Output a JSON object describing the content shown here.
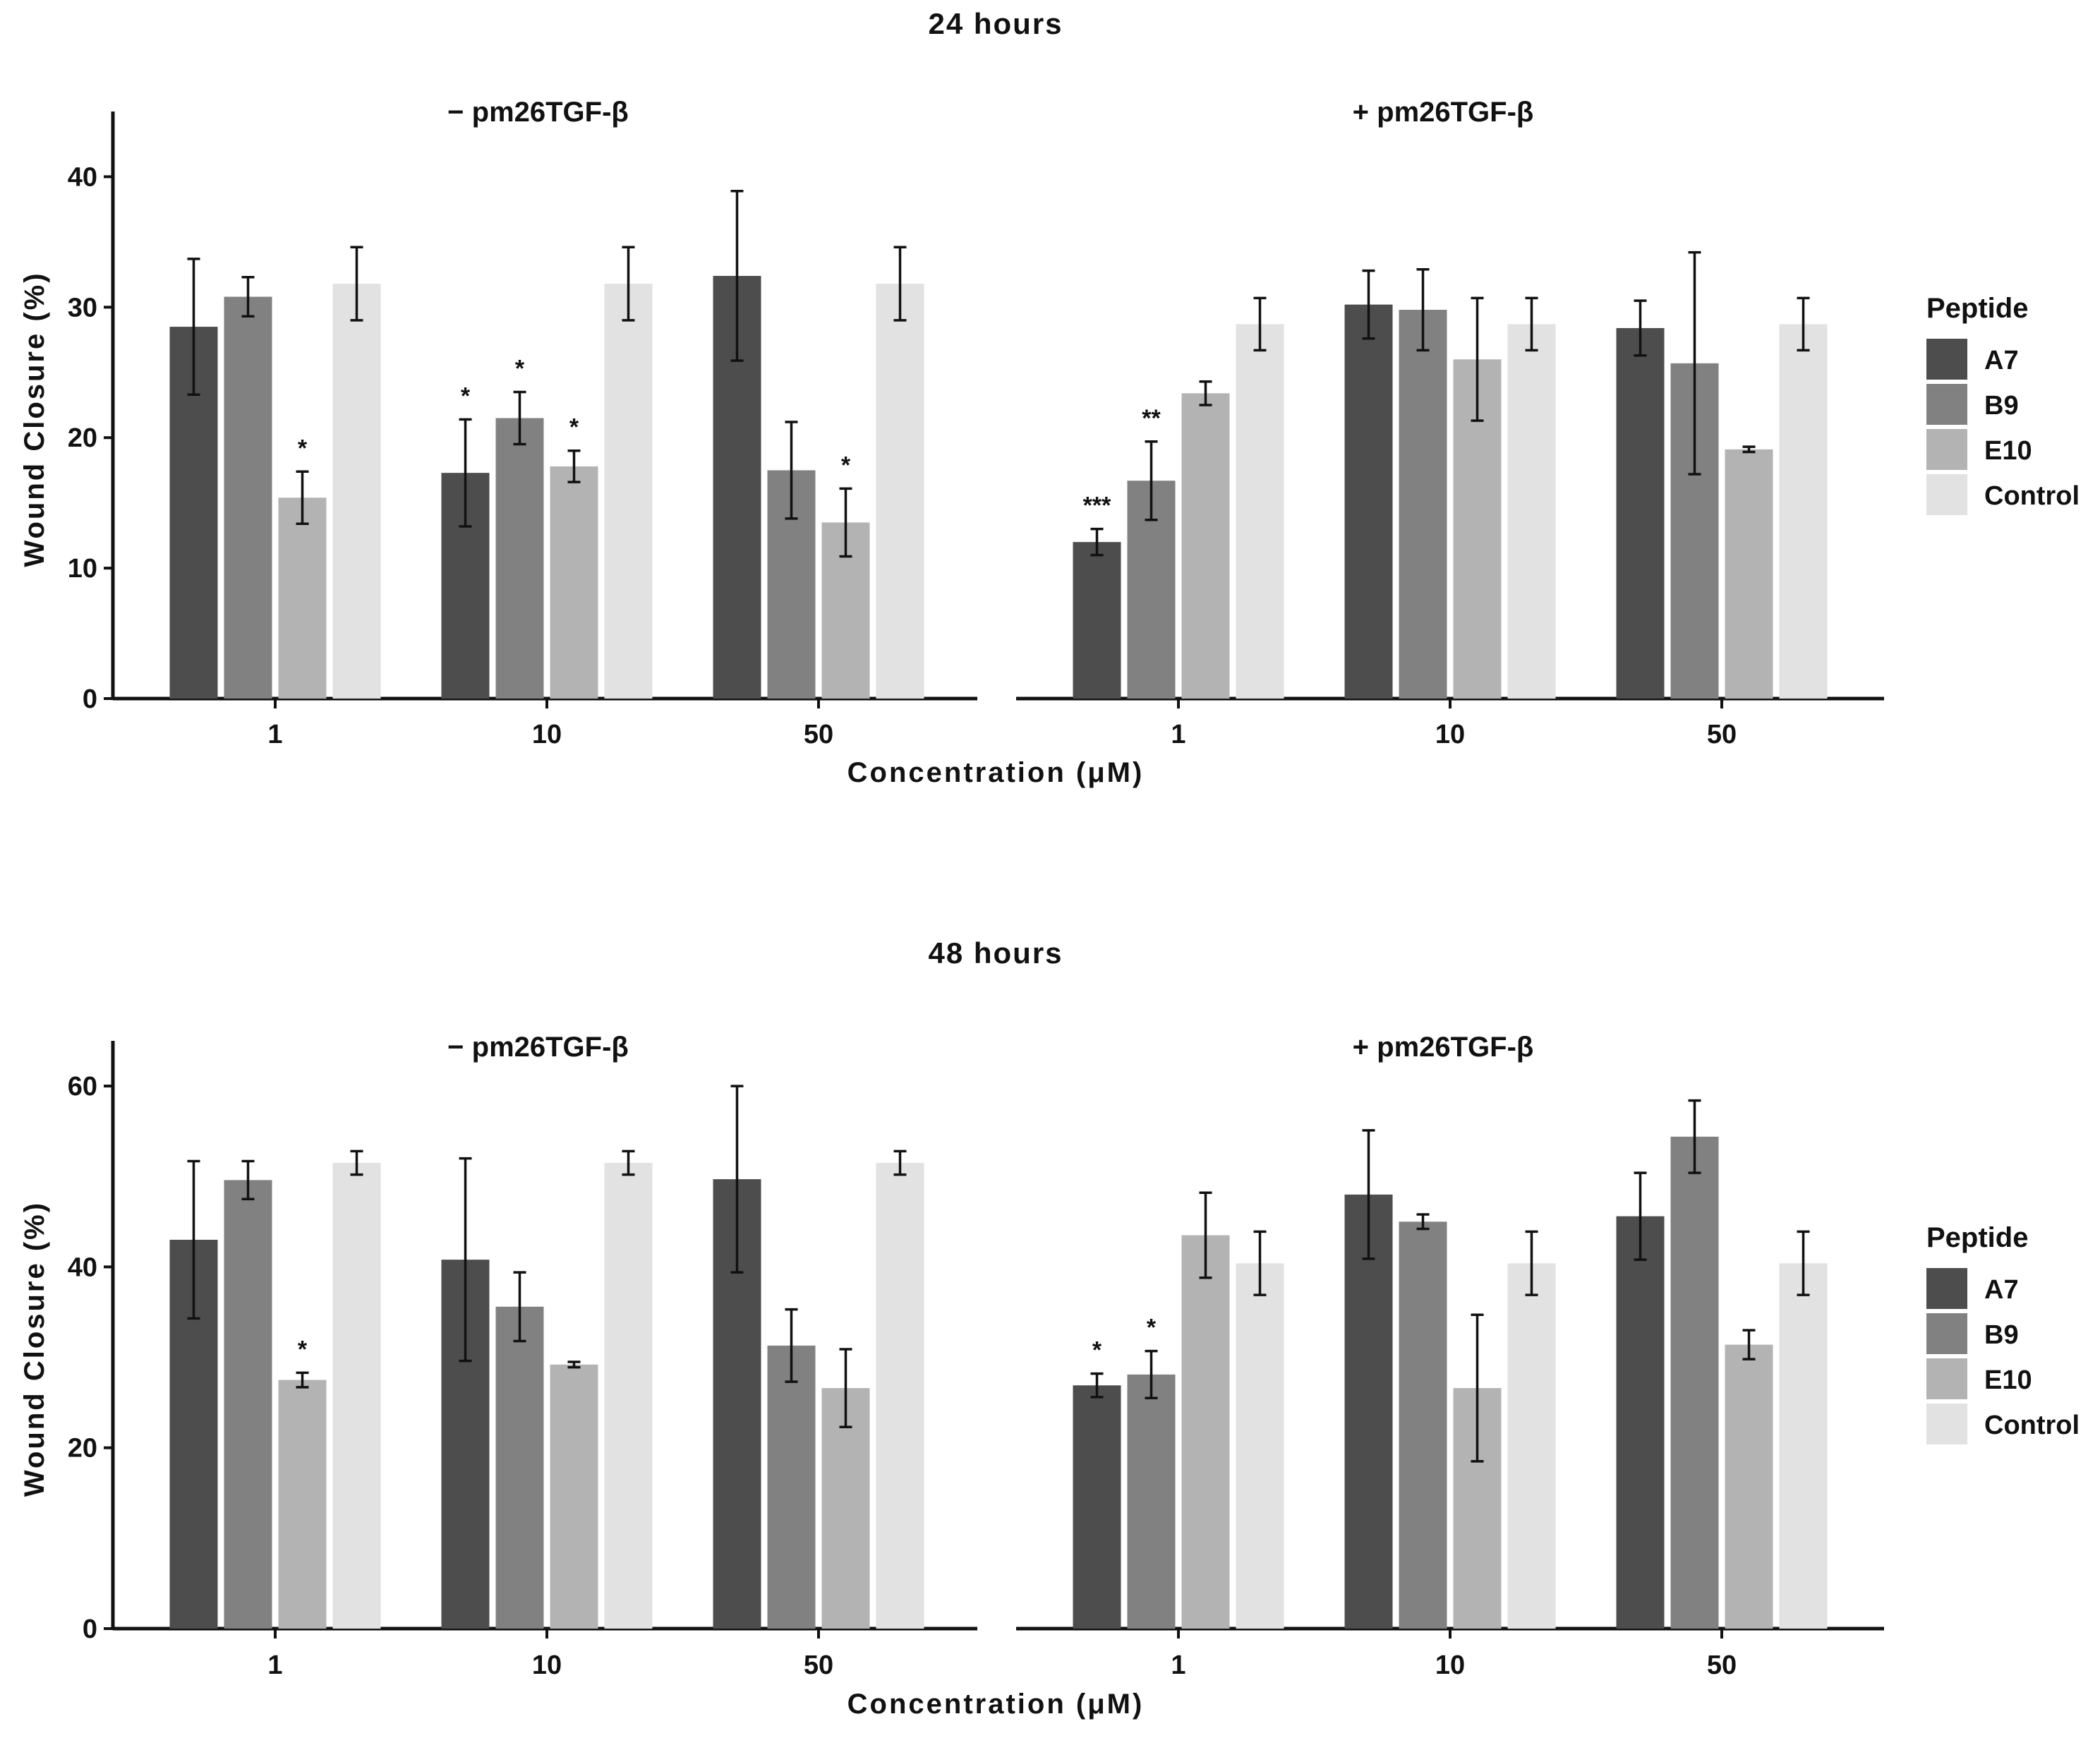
{
  "chart_data": [
    {
      "type": "bar",
      "title": "24 hours",
      "xlabel": "Concentration (μM)",
      "ylabel": "Wound Closure (%)",
      "ylim": [
        0,
        45
      ],
      "yticks": [
        0,
        10,
        20,
        30,
        40
      ],
      "legend": {
        "title": "Peptide",
        "position": "right"
      },
      "series_names": [
        "A7",
        "B9",
        "E10",
        "Control"
      ],
      "colors": [
        "#4d4d4d",
        "#818181",
        "#b3b3b3",
        "#e2e2e2"
      ],
      "facets": [
        {
          "title": "− pm26TGF-β",
          "categories": [
            "1",
            "10",
            "50"
          ],
          "series": [
            {
              "name": "A7",
              "values": [
                28.5,
                17.3,
                32.4
              ],
              "err": [
                5.2,
                4.1,
                6.5
              ],
              "sig": [
                "",
                "*",
                ""
              ]
            },
            {
              "name": "B9",
              "values": [
                30.8,
                21.5,
                17.5
              ],
              "err": [
                1.5,
                2.0,
                3.7
              ],
              "sig": [
                "",
                "*",
                ""
              ]
            },
            {
              "name": "E10",
              "values": [
                15.4,
                17.8,
                13.5
              ],
              "err": [
                2.0,
                1.2,
                2.6
              ],
              "sig": [
                "*",
                "*",
                "*"
              ]
            },
            {
              "name": "Control",
              "values": [
                31.8,
                31.8,
                31.8
              ],
              "err": [
                2.8,
                2.8,
                2.8
              ],
              "sig": [
                "",
                "",
                ""
              ]
            }
          ]
        },
        {
          "title": "+ pm26TGF-β",
          "categories": [
            "1",
            "10",
            "50"
          ],
          "series": [
            {
              "name": "A7",
              "values": [
                12.0,
                30.2,
                28.4
              ],
              "err": [
                1.0,
                2.6,
                2.1
              ],
              "sig": [
                "***",
                "",
                ""
              ]
            },
            {
              "name": "B9",
              "values": [
                16.7,
                29.8,
                25.7
              ],
              "err": [
                3.0,
                3.1,
                8.5
              ],
              "sig": [
                "**",
                "",
                ""
              ]
            },
            {
              "name": "E10",
              "values": [
                23.4,
                26.0,
                19.1
              ],
              "err": [
                0.9,
                4.7,
                0.2
              ],
              "sig": [
                "",
                "",
                ""
              ]
            },
            {
              "name": "Control",
              "values": [
                28.7,
                28.7,
                28.7
              ],
              "err": [
                2.0,
                2.0,
                2.0
              ],
              "sig": [
                "",
                "",
                ""
              ]
            }
          ]
        }
      ]
    },
    {
      "type": "bar",
      "title": "48 hours",
      "xlabel": "Concentration (μM)",
      "ylabel": "Wound Closure (%)",
      "ylim": [
        0,
        65
      ],
      "yticks": [
        0,
        20,
        40,
        60
      ],
      "legend": {
        "title": "Peptide",
        "position": "right"
      },
      "series_names": [
        "A7",
        "B9",
        "E10",
        "Control"
      ],
      "colors": [
        "#4d4d4d",
        "#818181",
        "#b3b3b3",
        "#e2e2e2"
      ],
      "facets": [
        {
          "title": "− pm26TGF-β",
          "categories": [
            "1",
            "10",
            "50"
          ],
          "series": [
            {
              "name": "A7",
              "values": [
                43.0,
                40.8,
                49.7
              ],
              "err": [
                8.7,
                11.2,
                10.3
              ],
              "sig": [
                "",
                "",
                ""
              ]
            },
            {
              "name": "B9",
              "values": [
                49.6,
                35.6,
                31.3
              ],
              "err": [
                2.1,
                3.8,
                4.0
              ],
              "sig": [
                "",
                "",
                ""
              ]
            },
            {
              "name": "E10",
              "values": [
                27.5,
                29.2,
                26.6
              ],
              "err": [
                0.8,
                0.3,
                4.3
              ],
              "sig": [
                "*",
                "",
                ""
              ]
            },
            {
              "name": "Control",
              "values": [
                51.5,
                51.5,
                51.5
              ],
              "err": [
                1.3,
                1.3,
                1.3
              ],
              "sig": [
                "",
                "",
                ""
              ]
            }
          ]
        },
        {
          "title": "+ pm26TGF-β",
          "categories": [
            "1",
            "10",
            "50"
          ],
          "series": [
            {
              "name": "A7",
              "values": [
                26.9,
                48.0,
                45.6
              ],
              "err": [
                1.3,
                7.1,
                4.8
              ],
              "sig": [
                "*",
                "",
                ""
              ]
            },
            {
              "name": "B9",
              "values": [
                28.1,
                45.0,
                54.4
              ],
              "err": [
                2.6,
                0.8,
                4.0
              ],
              "sig": [
                "*",
                "",
                ""
              ]
            },
            {
              "name": "E10",
              "values": [
                43.5,
                26.6,
                31.4
              ],
              "err": [
                4.7,
                8.1,
                1.6
              ],
              "sig": [
                "",
                "",
                ""
              ]
            },
            {
              "name": "Control",
              "values": [
                40.4,
                40.4,
                40.4
              ],
              "err": [
                3.5,
                3.5,
                3.5
              ],
              "sig": [
                "",
                "",
                ""
              ]
            }
          ]
        }
      ]
    }
  ]
}
